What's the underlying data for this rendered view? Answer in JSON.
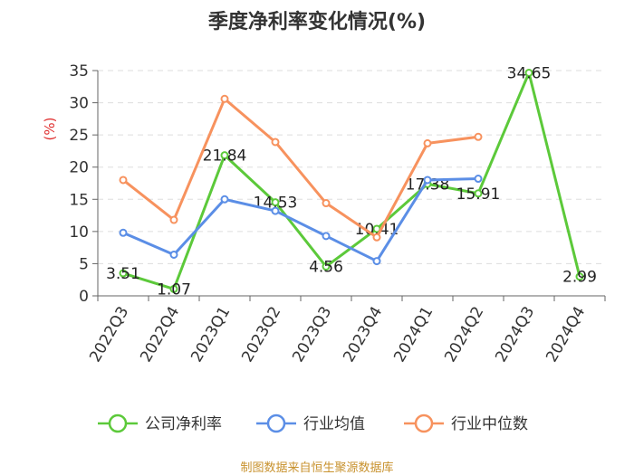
{
  "title": "季度净利率变化情况(%)",
  "source": "制图数据来自恒生聚源数据库",
  "colors": {
    "company": "#5cc93a",
    "industry_avg": "#5b8ee6",
    "industry_median": "#f7925e",
    "ylabel": "#e03030"
  },
  "chart_data": {
    "type": "line",
    "title": "季度净利率变化情况(%)",
    "ylabel": "(%)",
    "xlabel": "",
    "ylim": [
      0,
      35
    ],
    "yticks": [
      0,
      5,
      10,
      15,
      20,
      25,
      30,
      35
    ],
    "grid": true,
    "legend_position": "bottom",
    "categories": [
      "2022Q3",
      "2022Q4",
      "2023Q1",
      "2023Q2",
      "2023Q3",
      "2023Q4",
      "2024Q1",
      "2024Q2",
      "2024Q3",
      "2024Q4"
    ],
    "series": [
      {
        "name": "公司净利率",
        "color": "#5cc93a",
        "values": [
          3.51,
          1.07,
          21.84,
          14.53,
          4.56,
          10.41,
          17.38,
          15.91,
          34.65,
          2.99
        ],
        "labels": [
          "3.51",
          "1.07",
          "21.84",
          "14.53",
          "4.56",
          "10.41",
          "17.38",
          "15.91",
          "34.65",
          "2.99"
        ]
      },
      {
        "name": "行业均值",
        "color": "#5b8ee6",
        "values": [
          9.8,
          6.4,
          15.0,
          13.2,
          9.3,
          5.4,
          18.0,
          18.2,
          null,
          null
        ]
      },
      {
        "name": "行业中位数",
        "color": "#f7925e",
        "values": [
          18.0,
          11.8,
          30.6,
          23.9,
          14.4,
          9.1,
          23.7,
          24.7,
          null,
          null
        ]
      }
    ]
  }
}
